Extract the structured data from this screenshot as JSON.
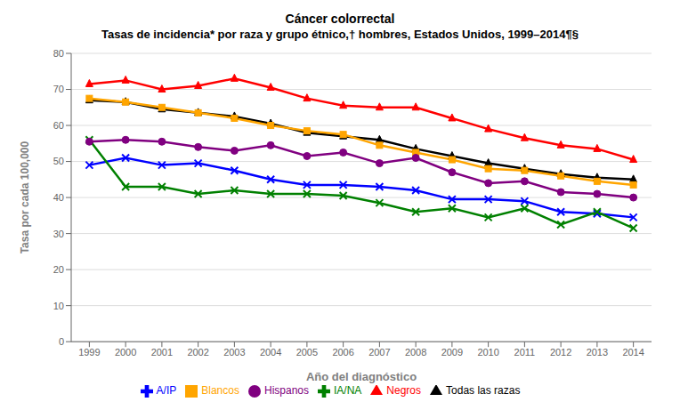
{
  "chart_data": {
    "type": "line",
    "title": "Cáncer colorrectal",
    "subtitle": "Tasas de incidencia* por raza y grupo étnico,† hombres, Estados Unidos, 1999–2014¶§",
    "x_label": "Año del diagnóstico",
    "y_label": "Tasa por cada 100,000",
    "x": [
      1999,
      2000,
      2001,
      2002,
      2003,
      2004,
      2005,
      2006,
      2007,
      2008,
      2009,
      2010,
      2011,
      2012,
      2013,
      2014
    ],
    "xlim": [
      1998.5,
      2014.5
    ],
    "xticks": [
      1999,
      2000,
      2001,
      2002,
      2003,
      2004,
      2005,
      2006,
      2007,
      2008,
      2009,
      2010,
      2011,
      2012,
      2013,
      2014
    ],
    "ylim": [
      0,
      80
    ],
    "yticks": [
      0,
      10,
      20,
      30,
      40,
      50,
      60,
      70,
      80
    ],
    "grid": "y",
    "legend": "bottom",
    "series": [
      {
        "name": "Todas las razas",
        "color": "#000000",
        "marker": "triangle",
        "values": [
          67.0,
          66.5,
          64.5,
          63.5,
          62.5,
          60.5,
          58.0,
          57.0,
          56.0,
          53.5,
          51.5,
          49.5,
          48.0,
          46.5,
          45.5,
          45.0
        ]
      },
      {
        "name": "Blancos",
        "color": "#FFA500",
        "marker": "square",
        "values": [
          67.5,
          66.5,
          65.0,
          63.5,
          62.0,
          60.0,
          58.5,
          57.5,
          54.5,
          52.5,
          50.5,
          48.0,
          47.5,
          46.0,
          44.5,
          43.5
        ]
      },
      {
        "name": "Negros",
        "color": "#FF0000",
        "marker": "triangle",
        "values": [
          71.5,
          72.5,
          70.0,
          71.0,
          73.0,
          70.5,
          67.5,
          65.5,
          65.0,
          65.0,
          62.0,
          59.0,
          56.5,
          54.5,
          53.5,
          50.5
        ]
      },
      {
        "name": "A/IP",
        "color": "#0000FF",
        "marker": "x",
        "values": [
          49.0,
          51.0,
          49.0,
          49.5,
          47.5,
          45.0,
          43.5,
          43.5,
          43.0,
          42.0,
          39.5,
          39.5,
          39.0,
          36.0,
          35.5,
          34.5
        ]
      },
      {
        "name": "IA/NA",
        "color": "#008000",
        "marker": "x",
        "values": [
          56.0,
          43.0,
          43.0,
          41.0,
          42.0,
          41.0,
          41.0,
          40.5,
          38.5,
          36.0,
          37.0,
          34.5,
          37.0,
          32.5,
          36.0,
          31.5
        ]
      },
      {
        "name": "Hispanos",
        "color": "#800080",
        "marker": "circle",
        "values": [
          55.5,
          56.0,
          55.5,
          54.0,
          53.0,
          54.5,
          51.5,
          52.5,
          49.5,
          51.0,
          47.0,
          44.0,
          44.5,
          41.5,
          41.0,
          40.0
        ]
      }
    ]
  }
}
